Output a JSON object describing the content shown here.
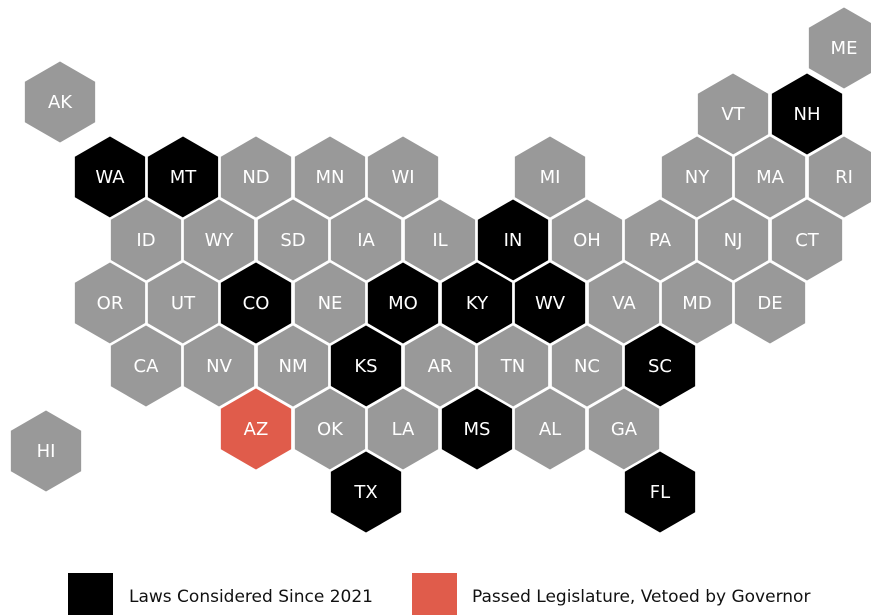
{
  "states": [
    {
      "label": "ME",
      "color": "#999999"
    },
    {
      "label": "AK",
      "color": "#999999"
    },
    {
      "label": "VT",
      "color": "#999999"
    },
    {
      "label": "NH",
      "color": "#000000"
    },
    {
      "label": "WA",
      "color": "#000000"
    },
    {
      "label": "MT",
      "color": "#000000"
    },
    {
      "label": "ND",
      "color": "#999999"
    },
    {
      "label": "MN",
      "color": "#999999"
    },
    {
      "label": "WI",
      "color": "#999999"
    },
    {
      "label": "MI",
      "color": "#999999"
    },
    {
      "label": "NY",
      "color": "#999999"
    },
    {
      "label": "MA",
      "color": "#999999"
    },
    {
      "label": "RI",
      "color": "#999999"
    },
    {
      "label": "ID",
      "color": "#999999"
    },
    {
      "label": "WY",
      "color": "#999999"
    },
    {
      "label": "SD",
      "color": "#999999"
    },
    {
      "label": "IA",
      "color": "#999999"
    },
    {
      "label": "IL",
      "color": "#999999"
    },
    {
      "label": "IN",
      "color": "#000000"
    },
    {
      "label": "OH",
      "color": "#999999"
    },
    {
      "label": "PA",
      "color": "#999999"
    },
    {
      "label": "NJ",
      "color": "#999999"
    },
    {
      "label": "CT",
      "color": "#999999"
    },
    {
      "label": "OR",
      "color": "#999999"
    },
    {
      "label": "UT",
      "color": "#999999"
    },
    {
      "label": "CO",
      "color": "#000000"
    },
    {
      "label": "NE",
      "color": "#999999"
    },
    {
      "label": "MO",
      "color": "#000000"
    },
    {
      "label": "KY",
      "color": "#000000"
    },
    {
      "label": "WV",
      "color": "#000000"
    },
    {
      "label": "VA",
      "color": "#999999"
    },
    {
      "label": "MD",
      "color": "#999999"
    },
    {
      "label": "DE",
      "color": "#999999"
    },
    {
      "label": "CA",
      "color": "#999999"
    },
    {
      "label": "NV",
      "color": "#999999"
    },
    {
      "label": "NM",
      "color": "#999999"
    },
    {
      "label": "KS",
      "color": "#000000"
    },
    {
      "label": "AR",
      "color": "#999999"
    },
    {
      "label": "TN",
      "color": "#999999"
    },
    {
      "label": "NC",
      "color": "#999999"
    },
    {
      "label": "SC",
      "color": "#000000"
    },
    {
      "label": "HI",
      "color": "#999999"
    },
    {
      "label": "AZ",
      "color": "#e05c4b"
    },
    {
      "label": "OK",
      "color": "#999999"
    },
    {
      "label": "LA",
      "color": "#999999"
    },
    {
      "label": "MS",
      "color": "#000000"
    },
    {
      "label": "AL",
      "color": "#999999"
    },
    {
      "label": "GA",
      "color": "#999999"
    },
    {
      "label": "TX",
      "color": "#000000"
    },
    {
      "label": "FL",
      "color": "#000000"
    }
  ],
  "legend": [
    {
      "name": "Laws Considered Since 2021",
      "color": "#000000"
    },
    {
      "name": "Passed Legislature, Vetoed by Governor",
      "color": "#e05c4b"
    }
  ]
}
